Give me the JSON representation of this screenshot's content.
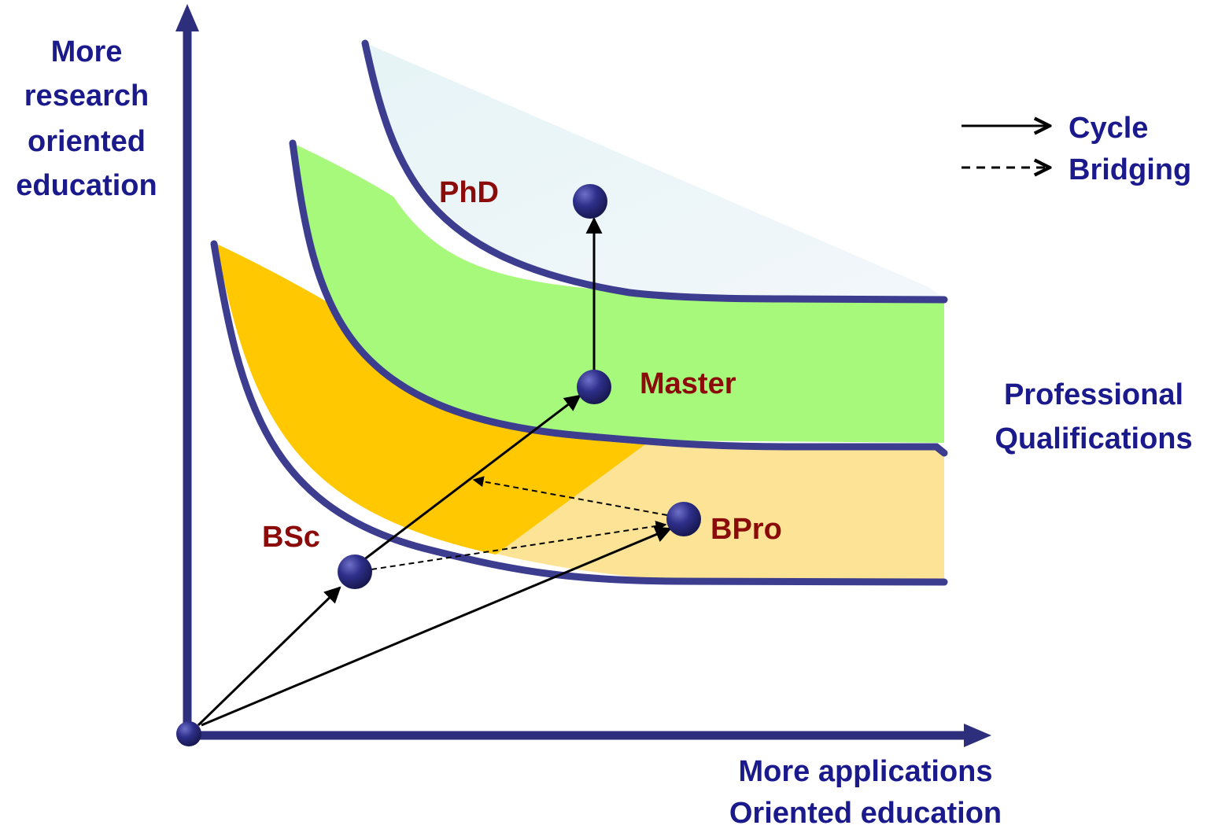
{
  "colors": {
    "axis": "#2e2f7c",
    "text_blue": "#1a1a8c",
    "text_red": "#8b0a0a",
    "phd_band": "#e3f1f5",
    "master_band": "#a6f97a",
    "bsc_band": "#ffc800",
    "bpro_band": "#fde396",
    "node": "#23246a",
    "arrow": "#000000"
  },
  "axes": {
    "y_label": [
      "More",
      "research",
      "oriented",
      "education"
    ],
    "x_label": [
      "More applications",
      "Oriented education"
    ]
  },
  "side_label": [
    "Professional",
    "Qualifications"
  ],
  "legend": {
    "cycle_label": "Cycle",
    "bridging_label": "Bridging"
  },
  "nodes": {
    "phd": "PhD",
    "master": "Master",
    "bsc": "BSc",
    "bpro": "BPro"
  }
}
